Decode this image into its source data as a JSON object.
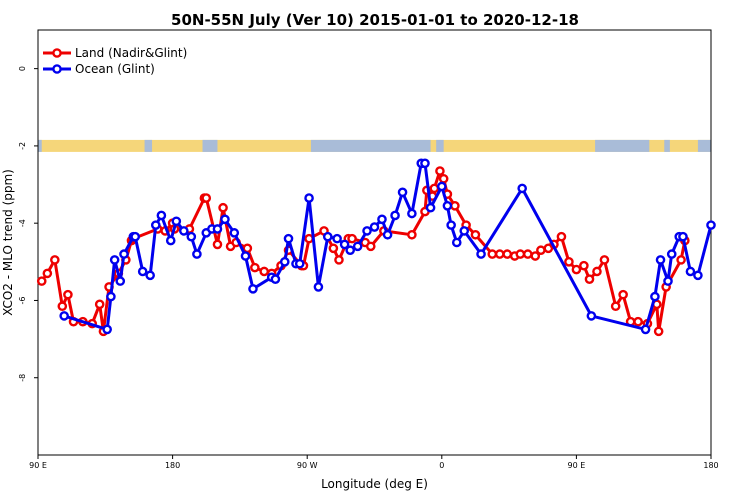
{
  "chart_data": {
    "type": "line",
    "title": "50N-55N July (Ver 10)   2015-01-01 to 2020-12-18",
    "xlabel": "Longitude (deg E)",
    "ylabel": "XCO2 - MLO trend (ppm)",
    "xlim": [
      90,
      450
    ],
    "ylim": [
      1,
      -10
    ],
    "y_reversed": true,
    "x_ticks": [
      {
        "value": 90,
        "label": "90 E"
      },
      {
        "value": 162,
        "label": "180"
      },
      {
        "value": 234,
        "label": "90 W"
      },
      {
        "value": 306,
        "label": "0"
      },
      {
        "value": 378,
        "label": "90 E"
      },
      {
        "value": 450,
        "label": "180"
      }
    ],
    "y_ticks": [
      0,
      -2,
      -4,
      -6,
      -8
    ],
    "legend_position": "top-left",
    "grid": false,
    "land_band_y": -2,
    "land_band_colors": {
      "land": "#f5d67a",
      "ocean": "#a9bcd8"
    },
    "series": [
      {
        "name": "Land (Nadir&Glint)",
        "color": "#ee0000",
        "x": [
          92,
          95,
          99,
          103,
          106,
          109,
          114,
          119,
          123,
          125,
          128,
          133,
          137,
          140,
          141,
          154,
          158,
          162,
          163,
          171,
          179,
          180,
          186,
          189,
          193,
          196,
          202,
          206,
          211,
          215,
          220,
          224,
          231,
          232,
          235,
          243,
          248,
          251,
          256,
          258,
          265,
          268,
          275,
          290,
          297,
          298,
          301,
          302,
          305,
          307,
          309,
          313,
          319,
          324,
          333,
          337,
          341,
          345,
          348,
          352,
          356,
          359,
          363,
          366,
          370,
          374,
          378,
          382,
          385,
          389,
          393,
          399,
          403,
          407,
          411,
          416,
          421,
          422,
          426,
          434,
          436
        ],
        "y": [
          -5.5,
          -5.3,
          -4.95,
          -6.15,
          -5.85,
          -6.55,
          -6.55,
          -6.6,
          -6.1,
          -6.8,
          -5.65,
          -5.3,
          -4.95,
          -4.45,
          -4.4,
          -4.15,
          -4.2,
          -4.0,
          -4.15,
          -4.15,
          -3.35,
          -3.35,
          -4.55,
          -3.6,
          -4.6,
          -4.5,
          -4.65,
          -5.15,
          -5.25,
          -5.3,
          -5.1,
          -4.7,
          -5.1,
          -5.1,
          -4.4,
          -4.2,
          -4.65,
          -4.95,
          -4.4,
          -4.4,
          -4.5,
          -4.6,
          -4.2,
          -4.3,
          -3.7,
          -3.15,
          -3.3,
          -3.1,
          -2.65,
          -2.85,
          -3.25,
          -3.55,
          -4.05,
          -4.3,
          -4.8,
          -4.8,
          -4.8,
          -4.85,
          -4.8,
          -4.8,
          -4.85,
          -4.7,
          -4.65,
          -4.55,
          -4.35,
          -5.0,
          -5.2,
          -5.1,
          -5.45,
          -5.25,
          -4.95,
          -6.15,
          -5.85,
          -6.55,
          -6.55,
          -6.6,
          -6.1,
          -6.8,
          -5.65,
          -4.95,
          -4.45
        ]
      },
      {
        "name": "Ocean (Glint)",
        "color": "#0000ee",
        "x": [
          104,
          127,
          129,
          131,
          134,
          136,
          141,
          142,
          146,
          150,
          153,
          156,
          161,
          164,
          168,
          172,
          175,
          180,
          183,
          186,
          190,
          195,
          201,
          205,
          215,
          217,
          222,
          224,
          228,
          230,
          235,
          240,
          245,
          250,
          254,
          257,
          261,
          266,
          270,
          274,
          277,
          281,
          285,
          290,
          295,
          297,
          300,
          306,
          309,
          311,
          314,
          318,
          327,
          349,
          386,
          415,
          420,
          423,
          427,
          429,
          433,
          435,
          439,
          443,
          450
        ],
        "y": [
          -6.4,
          -6.75,
          -5.9,
          -4.95,
          -5.5,
          -4.8,
          -4.35,
          -4.35,
          -5.25,
          -5.35,
          -4.05,
          -3.8,
          -4.45,
          -3.95,
          -4.2,
          -4.35,
          -4.8,
          -4.25,
          -4.15,
          -4.15,
          -3.9,
          -4.25,
          -4.85,
          -5.7,
          -5.4,
          -5.45,
          -5.0,
          -4.4,
          -5.05,
          -5.05,
          -3.35,
          -5.65,
          -4.35,
          -4.4,
          -4.55,
          -4.7,
          -4.6,
          -4.2,
          -4.1,
          -3.9,
          -4.3,
          -3.8,
          -3.2,
          -3.75,
          -2.45,
          -2.45,
          -3.6,
          -3.05,
          -3.55,
          -4.05,
          -4.5,
          -4.2,
          -4.8,
          -3.1,
          -6.4,
          -6.75,
          -5.9,
          -4.95,
          -5.5,
          -4.8,
          -4.35,
          -4.35,
          -5.25,
          -5.35,
          -4.05
        ]
      }
    ]
  }
}
